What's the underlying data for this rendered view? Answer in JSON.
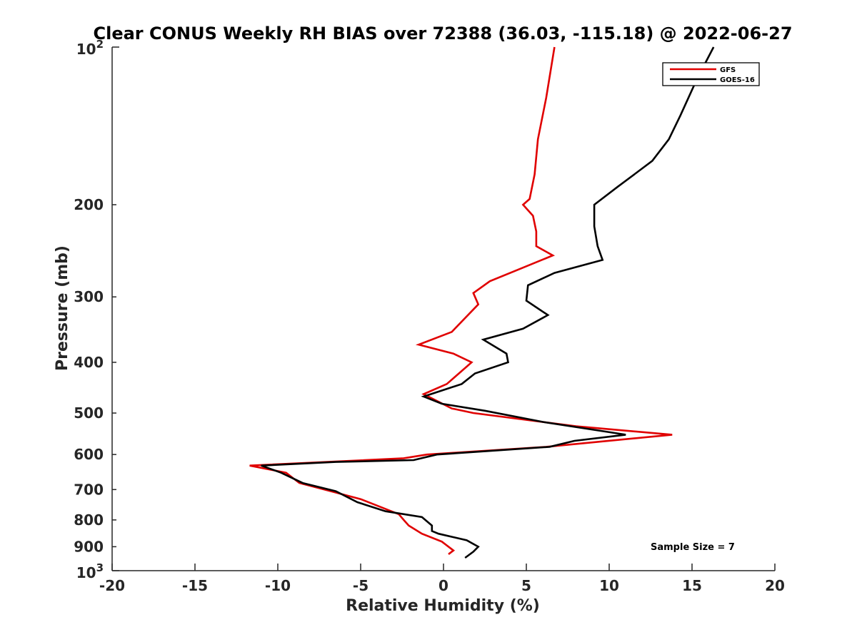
{
  "chart_data": {
    "type": "line",
    "title": "Clear CONUS Weekly RH BIAS over 72388 (36.03, -115.18) @ 2022-06-27",
    "xlabel": "Relative Humidity (%)",
    "ylabel": "Pressure (mb)",
    "xlim": [
      -20,
      20
    ],
    "ylim": [
      100,
      1000
    ],
    "y_scale": "log",
    "y_reversed": true,
    "x_ticks": [
      -20,
      -15,
      -10,
      -5,
      0,
      5,
      10,
      15,
      20
    ],
    "x_tick_labels": [
      "-20",
      "-15",
      "-10",
      "-5",
      "0",
      "5",
      "10",
      "15",
      "20"
    ],
    "y_ticks": [
      200,
      300,
      400,
      500,
      600,
      700,
      800,
      900
    ],
    "y_tick_labels": [
      "200",
      "300",
      "400",
      "500",
      "600",
      "700",
      "800",
      "900"
    ],
    "y_top_label": {
      "base": "10",
      "exp": "2"
    },
    "y_bottom_label": {
      "base": "10",
      "exp": "3"
    },
    "grid": false,
    "legend_position": "top-right",
    "annotation": "Sample Size = 7",
    "series": [
      {
        "name": "GFS",
        "color": "#e00000",
        "points": [
          [
            6.7,
            100
          ],
          [
            6.2,
            125
          ],
          [
            5.7,
            150
          ],
          [
            5.5,
            175
          ],
          [
            5.2,
            195
          ],
          [
            4.8,
            200
          ],
          [
            5.4,
            210
          ],
          [
            5.6,
            225
          ],
          [
            5.6,
            240
          ],
          [
            6.6,
            250
          ],
          [
            2.8,
            280
          ],
          [
            1.8,
            295
          ],
          [
            2.1,
            310
          ],
          [
            0.5,
            350
          ],
          [
            -1.5,
            370
          ],
          [
            0.6,
            385
          ],
          [
            1.7,
            400
          ],
          [
            0.2,
            440
          ],
          [
            -1.2,
            460
          ],
          [
            0.5,
            490
          ],
          [
            1.8,
            500
          ],
          [
            8,
            530
          ],
          [
            13.8,
            550
          ],
          [
            6.2,
            580
          ],
          [
            -1,
            600
          ],
          [
            -2.4,
            610
          ],
          [
            -7,
            620
          ],
          [
            -11.7,
            630
          ],
          [
            -9.5,
            650
          ],
          [
            -8.7,
            680
          ],
          [
            -6.8,
            705
          ],
          [
            -5,
            730
          ],
          [
            -2.7,
            780
          ],
          [
            -2.4,
            800
          ],
          [
            -2.1,
            820
          ],
          [
            -1.3,
            850
          ],
          [
            -0.1,
            880
          ],
          [
            0.4,
            905
          ],
          [
            0.6,
            915
          ],
          [
            0.3,
            930
          ]
        ]
      },
      {
        "name": "GOES-16",
        "color": "#000000",
        "points": [
          [
            16.3,
            100
          ],
          [
            15.3,
            115
          ],
          [
            14.3,
            135
          ],
          [
            13.6,
            150
          ],
          [
            12.6,
            165
          ],
          [
            10.5,
            185
          ],
          [
            9.1,
            200
          ],
          [
            9.1,
            220
          ],
          [
            9.3,
            240
          ],
          [
            9.6,
            255
          ],
          [
            6.7,
            270
          ],
          [
            5.1,
            285
          ],
          [
            5,
            305
          ],
          [
            6.3,
            325
          ],
          [
            4.8,
            345
          ],
          [
            2.4,
            362
          ],
          [
            3.8,
            385
          ],
          [
            3.9,
            400
          ],
          [
            1.9,
            420
          ],
          [
            1.1,
            440
          ],
          [
            -1.2,
            465
          ],
          [
            -0.1,
            480
          ],
          [
            2.5,
            495
          ],
          [
            6,
            520
          ],
          [
            11,
            550
          ],
          [
            7.9,
            565
          ],
          [
            6.4,
            580
          ],
          [
            -0.4,
            600
          ],
          [
            -1.8,
            615
          ],
          [
            -6.5,
            620
          ],
          [
            -11,
            630
          ],
          [
            -9.8,
            650
          ],
          [
            -8.5,
            680
          ],
          [
            -6.5,
            705
          ],
          [
            -5.2,
            740
          ],
          [
            -3.5,
            770
          ],
          [
            -1.3,
            790
          ],
          [
            -0.7,
            820
          ],
          [
            -0.7,
            840
          ],
          [
            -0.3,
            850
          ],
          [
            1.4,
            875
          ],
          [
            2.1,
            900
          ],
          [
            1.8,
            920
          ],
          [
            1.3,
            945
          ]
        ]
      }
    ]
  }
}
